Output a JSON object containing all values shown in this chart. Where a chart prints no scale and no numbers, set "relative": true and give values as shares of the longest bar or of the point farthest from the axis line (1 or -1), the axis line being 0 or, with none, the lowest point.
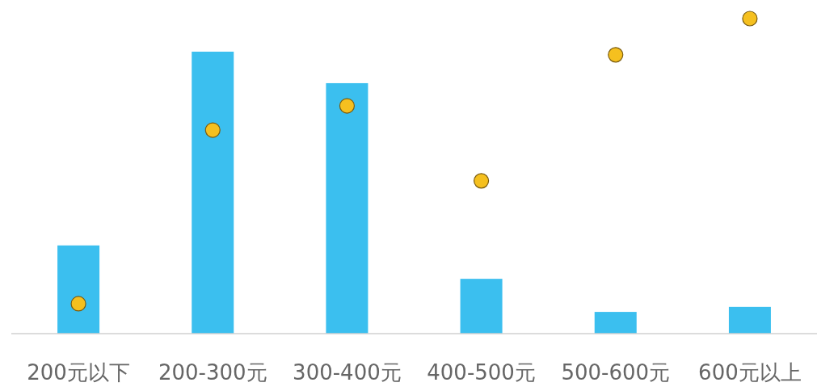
{
  "chart_data": {
    "type": "bar",
    "relative": true,
    "categories": [
      "200元以下",
      "200-300元",
      "300-400元",
      "400-500元",
      "500-600元",
      "600元以上"
    ],
    "series": [
      {
        "color": "#3bbfef",
        "values": [
          0.28,
          0.895,
          0.795,
          0.174,
          0.069,
          0.085
        ]
      },
      {
        "type": "scatter",
        "color": "#f5c01f",
        "values": [
          0.095,
          0.646,
          0.723,
          0.485,
          0.885,
          1
        ]
      }
    ],
    "marker": "circle"
  }
}
